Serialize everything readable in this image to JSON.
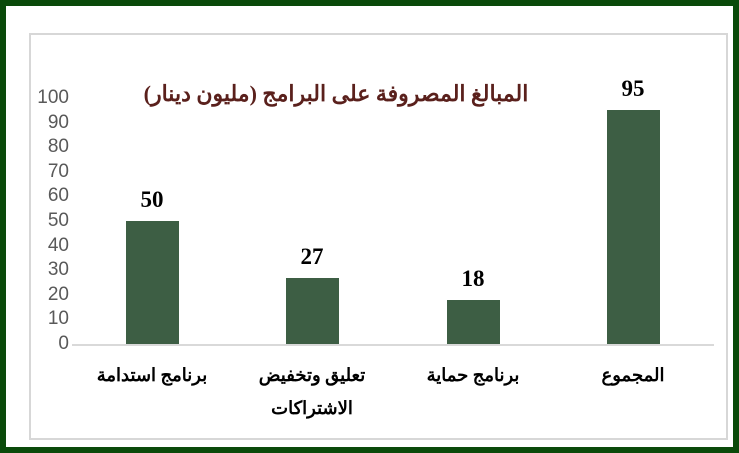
{
  "page": {
    "border_color": "#0A4A0A",
    "background_color": "#FFFFFF"
  },
  "chart_data": {
    "type": "bar",
    "title": "المبالغ المصروفة على البرامج (مليون دينار)",
    "title_color": "#5A201C",
    "categories": [
      "برنامج استدامة",
      "تعليق وتخفيض الاشتراكات",
      "برنامج حماية",
      "المجموع"
    ],
    "category_display_lines": [
      [
        "برنامج استدامة"
      ],
      [
        "تعليق وتخفيض",
        "الاشتراكات"
      ],
      [
        "برنامج حماية"
      ],
      [
        "المجموع"
      ]
    ],
    "values": [
      50,
      27,
      18,
      95
    ],
    "data_labels": [
      "50",
      "27",
      "18",
      "95"
    ],
    "yticks": [
      "100",
      "90",
      "80",
      "70",
      "60",
      "50",
      "40",
      "30",
      "20",
      "10",
      "0"
    ],
    "ylim": [
      0,
      100
    ],
    "xlabel": "",
    "ylabel": "",
    "bar_color": "#3D5E44",
    "axis_tick_color": "#595959",
    "axis_line_color": "#D9D9D9",
    "gridlines": "off",
    "legend": "none",
    "direction": "rtl"
  }
}
